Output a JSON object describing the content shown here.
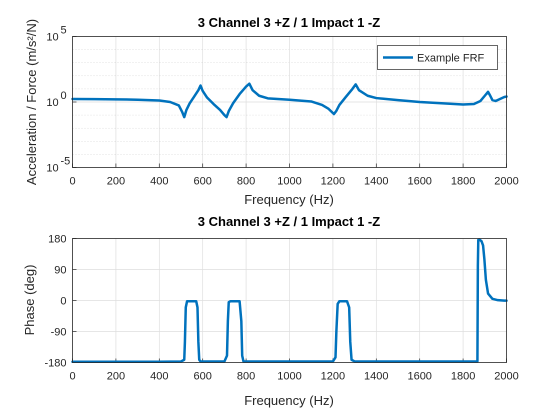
{
  "figure": {
    "background": "#ffffff",
    "axes_color": "#262626",
    "line_color": "#0072bd"
  },
  "chart_data": [
    {
      "type": "line",
      "title": "3 Channel 3 +Z / 1 Impact 1 -Z",
      "xlabel": "Frequency (Hz)",
      "ylabel": "Acceleration / Force (m/s²/N)",
      "xlim": [
        0,
        2000
      ],
      "ylim": [
        1e-05,
        100000.0
      ],
      "yscale": "log",
      "grid": true,
      "minor_grid": true,
      "legend_position": "top-right",
      "xticks": [
        0,
        200,
        400,
        600,
        800,
        1000,
        1200,
        1400,
        1600,
        1800,
        2000
      ],
      "xticklabels": [
        "0",
        "200",
        "400",
        "600",
        "800",
        "1000",
        "1200",
        "1400",
        "1600",
        "1800",
        "2000"
      ],
      "yticks": [
        1e-05,
        1,
        100000.0
      ],
      "ytick_base": [
        "10",
        "10",
        "10"
      ],
      "ytick_exp": [
        "-5",
        "0",
        "5"
      ],
      "series": [
        {
          "name": "Example FRF",
          "color": "#0072bd",
          "x": [
            0,
            100,
            200,
            300,
            400,
            450,
            490,
            505,
            515,
            525,
            540,
            560,
            580,
            590,
            600,
            620,
            650,
            680,
            700,
            710,
            720,
            740,
            770,
            800,
            815,
            830,
            860,
            900,
            1000,
            1100,
            1150,
            1180,
            1205,
            1215,
            1230,
            1260,
            1290,
            1305,
            1320,
            1360,
            1400,
            1500,
            1600,
            1700,
            1800,
            1850,
            1880,
            1900,
            1915,
            1925,
            1935,
            1950,
            1970,
            1990,
            2000
          ],
          "y": [
            1.7,
            1.65,
            1.6,
            1.5,
            1.3,
            1.0,
            0.55,
            0.18,
            0.07,
            0.25,
            0.8,
            2.5,
            8,
            18,
            7,
            2.2,
            0.7,
            0.25,
            0.1,
            0.07,
            0.2,
            0.8,
            4,
            15,
            25,
            8,
            3,
            1.9,
            1.5,
            1.1,
            0.6,
            0.3,
            0.12,
            0.2,
            0.6,
            2.5,
            10,
            22,
            8,
            3,
            2.0,
            1.4,
            1.0,
            0.8,
            0.65,
            0.7,
            1.2,
            3,
            6,
            3,
            1.4,
            1.2,
            1.7,
            2.4,
            2.6
          ]
        }
      ]
    },
    {
      "type": "line",
      "title": "3 Channel 3 +Z / 1 Impact 1 -Z",
      "xlabel": "Frequency (Hz)",
      "ylabel": "Phase (deg)",
      "xlim": [
        0,
        2000
      ],
      "ylim": [
        -180,
        180
      ],
      "yscale": "linear",
      "grid": true,
      "xticks": [
        0,
        200,
        400,
        600,
        800,
        1000,
        1200,
        1400,
        1600,
        1800,
        2000
      ],
      "xticklabels": [
        "0",
        "200",
        "400",
        "600",
        "800",
        "1000",
        "1200",
        "1400",
        "1600",
        "1800",
        "2000"
      ],
      "yticks": [
        -180,
        -90,
        0,
        90,
        180
      ],
      "yticklabels": [
        "-180",
        "-90",
        "0",
        "90",
        "180"
      ],
      "series": [
        {
          "color": "#0072bd",
          "x": [
            0,
            400,
            500,
            515,
            518,
            522,
            528,
            570,
            576,
            580,
            584,
            590,
            600,
            700,
            712,
            716,
            720,
            728,
            770,
            778,
            782,
            788,
            800,
            1100,
            1200,
            1212,
            1216,
            1222,
            1230,
            1265,
            1275,
            1280,
            1286,
            1300,
            1800,
            1860,
            1866,
            1868,
            1870,
            1875,
            1885,
            1892,
            1898,
            1905,
            1915,
            1935,
            1960,
            1990,
            2000
          ],
          "y": [
            -178,
            -178,
            -177,
            -172,
            -120,
            -20,
            -2,
            -2,
            -20,
            -120,
            -172,
            -177,
            -177,
            -177,
            -160,
            -60,
            -5,
            -2,
            -2,
            -60,
            -160,
            -177,
            -177,
            -177,
            -177,
            -165,
            -90,
            -10,
            -2,
            -2,
            -20,
            -120,
            -172,
            -177,
            -177,
            -177,
            -177,
            100,
            176,
            177,
            172,
            160,
            120,
            60,
            20,
            5,
            1,
            -0.5,
            -0.5
          ]
        }
      ]
    }
  ]
}
